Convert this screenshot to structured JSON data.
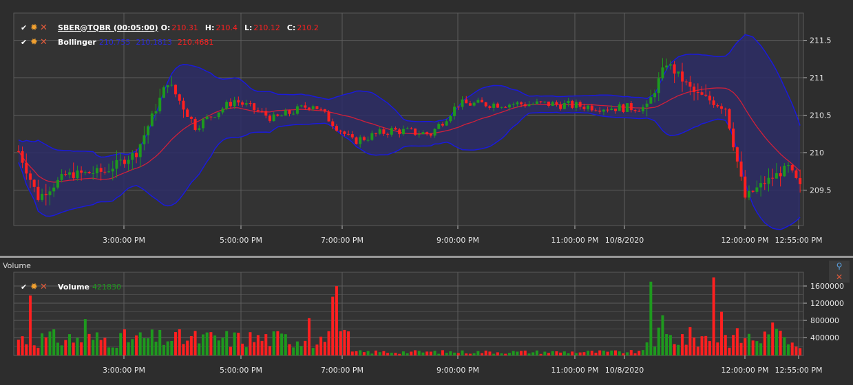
{
  "price_pane": {
    "y_ticks": [
      "211.5",
      "211",
      "210.5",
      "210",
      "209.5"
    ],
    "x_ticks": [
      "3:00:00 PM",
      "5:00:00 PM",
      "7:00:00 PM",
      "9:00:00 PM",
      "11:00:00 PM",
      "10/8/2020",
      "12:00:00 PM",
      "12:55:00 PM"
    ],
    "legend_candles": {
      "name": "SBER@TQBR (00:05:00)",
      "o_label": "O:",
      "o_value": "210.31",
      "h_label": "H:",
      "h_value": "210.4",
      "l_label": "L:",
      "l_value": "210.12",
      "c_label": "C:",
      "c_value": "210.2"
    },
    "legend_bollinger": {
      "name": "Bollinger",
      "v1": "210.755",
      "v2": "210.1813",
      "v3": "210.4681"
    }
  },
  "volume_pane": {
    "title": "Volume",
    "y_ticks": [
      "1600000",
      "1200000",
      "800000",
      "400000"
    ],
    "x_ticks": [
      "3:00:00 PM",
      "5:00:00 PM",
      "7:00:00 PM",
      "9:00:00 PM",
      "11:00:00 PM",
      "10/8/2020",
      "12:00:00 PM",
      "12:55:00 PM"
    ],
    "legend_volume": {
      "name": "Volume",
      "value": "421830"
    }
  },
  "icons": {
    "check": "check-icon",
    "gear": "gear-icon",
    "close": "close-icon",
    "pin": "pin-icon"
  },
  "colors": {
    "up": "#1e9a1e",
    "down": "#ff2020",
    "band_fill": "#2d2d66",
    "band_line": "#1a1adc",
    "middle_line": "#d0203a"
  }
}
